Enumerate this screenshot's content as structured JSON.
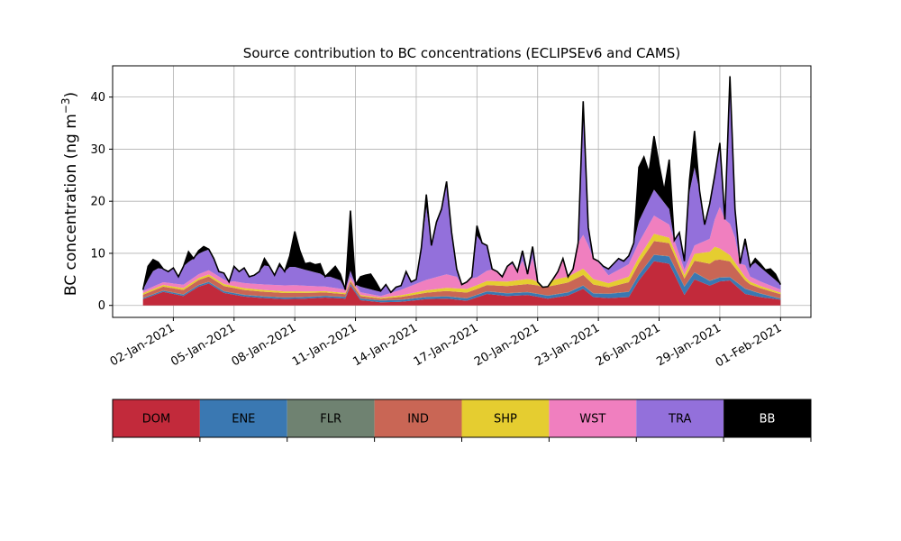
{
  "chart_data": {
    "type": "area",
    "stacked": true,
    "title": "Source contribution to BC concentrations (ECLIPSEv6 and CAMS)",
    "xlabel": "",
    "ylabel": "BC concentration (ng m⁻³)",
    "ylabel_base": "BC concentration (ng m",
    "ylabel_sup": "−3",
    "ylabel_close": ")",
    "x_start": "2020-12-31T12:00",
    "x_end": "2021-02-01T00:00",
    "xlim": [
      "2020-12-30T00:00",
      "2021-02-02T12:00"
    ],
    "ylim": [
      -2.3,
      46
    ],
    "grid": true,
    "x_ticks": [
      {
        "date": "2021-01-02",
        "label": "02-Jan-2021"
      },
      {
        "date": "2021-01-05",
        "label": "05-Jan-2021"
      },
      {
        "date": "2021-01-08",
        "label": "08-Jan-2021"
      },
      {
        "date": "2021-01-11",
        "label": "11-Jan-2021"
      },
      {
        "date": "2021-01-14",
        "label": "14-Jan-2021"
      },
      {
        "date": "2021-01-17",
        "label": "17-Jan-2021"
      },
      {
        "date": "2021-01-20",
        "label": "20-Jan-2021"
      },
      {
        "date": "2021-01-23",
        "label": "23-Jan-2021"
      },
      {
        "date": "2021-01-26",
        "label": "26-Jan-2021"
      },
      {
        "date": "2021-01-29",
        "label": "29-Jan-2021"
      },
      {
        "date": "2021-02-01",
        "label": "01-Feb-2021"
      }
    ],
    "y_ticks": [
      0,
      10,
      20,
      30,
      40
    ],
    "total_points": [
      [
        "2020-12-31T12:00",
        3.0
      ],
      [
        "2020-12-31T18:00",
        7.5
      ],
      [
        "2021-01-01T00:00",
        8.8
      ],
      [
        "2021-01-01T06:00",
        8.3
      ],
      [
        "2021-01-01T12:00",
        7.0
      ],
      [
        "2021-01-01T18:00",
        6.5
      ],
      [
        "2021-01-02T00:00",
        7.2
      ],
      [
        "2021-01-02T06:00",
        5.5
      ],
      [
        "2021-01-02T12:00",
        7.5
      ],
      [
        "2021-01-02T18:00",
        10.3
      ],
      [
        "2021-01-03T00:00",
        9.0
      ],
      [
        "2021-01-03T06:00",
        10.5
      ],
      [
        "2021-01-03T12:00",
        11.3
      ],
      [
        "2021-01-03T18:00",
        10.8
      ],
      [
        "2021-01-04T00:00",
        9.0
      ],
      [
        "2021-01-04T06:00",
        6.5
      ],
      [
        "2021-01-04T12:00",
        6.2
      ],
      [
        "2021-01-04T18:00",
        4.5
      ],
      [
        "2021-01-05T00:00",
        7.5
      ],
      [
        "2021-01-05T06:00",
        6.5
      ],
      [
        "2021-01-05T12:00",
        7.2
      ],
      [
        "2021-01-05T18:00",
        5.5
      ],
      [
        "2021-01-06T00:00",
        5.8
      ],
      [
        "2021-01-06T06:00",
        6.5
      ],
      [
        "2021-01-06T12:00",
        9.0
      ],
      [
        "2021-01-06T18:00",
        7.5
      ],
      [
        "2021-01-07T00:00",
        5.8
      ],
      [
        "2021-01-07T06:00",
        8.0
      ],
      [
        "2021-01-07T12:00",
        6.5
      ],
      [
        "2021-01-07T18:00",
        9.5
      ],
      [
        "2021-01-08T00:00",
        14.2
      ],
      [
        "2021-01-08T06:00",
        10.5
      ],
      [
        "2021-01-08T12:00",
        8.0
      ],
      [
        "2021-01-08T18:00",
        8.2
      ],
      [
        "2021-01-09T00:00",
        7.8
      ],
      [
        "2021-01-09T06:00",
        8.0
      ],
      [
        "2021-01-09T12:00",
        5.5
      ],
      [
        "2021-01-09T18:00",
        6.5
      ],
      [
        "2021-01-10T00:00",
        7.5
      ],
      [
        "2021-01-10T06:00",
        6.0
      ],
      [
        "2021-01-10T12:00",
        3.0
      ],
      [
        "2021-01-10T18:00",
        18.2
      ],
      [
        "2021-01-11T00:00",
        4.0
      ],
      [
        "2021-01-11T06:00",
        5.5
      ],
      [
        "2021-01-11T12:00",
        5.8
      ],
      [
        "2021-01-11T18:00",
        6.0
      ],
      [
        "2021-01-12T00:00",
        4.5
      ],
      [
        "2021-01-12T06:00",
        2.8
      ],
      [
        "2021-01-12T12:00",
        4.0
      ],
      [
        "2021-01-12T18:00",
        2.5
      ],
      [
        "2021-01-13T00:00",
        3.5
      ],
      [
        "2021-01-13T06:00",
        3.8
      ],
      [
        "2021-01-13T12:00",
        6.5
      ],
      [
        "2021-01-13T18:00",
        4.5
      ],
      [
        "2021-01-14T00:00",
        5.0
      ],
      [
        "2021-01-14T06:00",
        11.0
      ],
      [
        "2021-01-14T12:00",
        21.3
      ],
      [
        "2021-01-14T18:00",
        11.5
      ],
      [
        "2021-01-15T00:00",
        16.0
      ],
      [
        "2021-01-15T06:00",
        18.5
      ],
      [
        "2021-01-15T12:00",
        23.8
      ],
      [
        "2021-01-15T18:00",
        14.0
      ],
      [
        "2021-01-16T00:00",
        7.0
      ],
      [
        "2021-01-16T06:00",
        4.0
      ],
      [
        "2021-01-16T12:00",
        4.5
      ],
      [
        "2021-01-16T18:00",
        5.5
      ],
      [
        "2021-01-17T00:00",
        15.3
      ],
      [
        "2021-01-17T06:00",
        12.0
      ],
      [
        "2021-01-17T12:00",
        11.5
      ],
      [
        "2021-01-17T18:00",
        7.0
      ],
      [
        "2021-01-18T00:00",
        6.5
      ],
      [
        "2021-01-18T06:00",
        5.5
      ],
      [
        "2021-01-18T12:00",
        7.5
      ],
      [
        "2021-01-18T18:00",
        8.3
      ],
      [
        "2021-01-19T00:00",
        6.5
      ],
      [
        "2021-01-19T06:00",
        10.5
      ],
      [
        "2021-01-19T12:00",
        6.0
      ],
      [
        "2021-01-19T18:00",
        11.3
      ],
      [
        "2021-01-20T00:00",
        4.5
      ],
      [
        "2021-01-20T06:00",
        3.5
      ],
      [
        "2021-01-20T12:00",
        3.6
      ],
      [
        "2021-01-20T18:00",
        5.0
      ],
      [
        "2021-01-21T00:00",
        6.5
      ],
      [
        "2021-01-21T06:00",
        9.0
      ],
      [
        "2021-01-21T12:00",
        5.5
      ],
      [
        "2021-01-21T18:00",
        7.0
      ],
      [
        "2021-01-22T00:00",
        12.0
      ],
      [
        "2021-01-22T06:00",
        39.2
      ],
      [
        "2021-01-22T12:00",
        15.0
      ],
      [
        "2021-01-22T18:00",
        9.0
      ],
      [
        "2021-01-23T00:00",
        8.5
      ],
      [
        "2021-01-23T06:00",
        7.5
      ],
      [
        "2021-01-23T12:00",
        7.0
      ],
      [
        "2021-01-23T18:00",
        8.0
      ],
      [
        "2021-01-24T00:00",
        9.0
      ],
      [
        "2021-01-24T06:00",
        8.5
      ],
      [
        "2021-01-24T12:00",
        9.5
      ],
      [
        "2021-01-24T18:00",
        12.0
      ],
      [
        "2021-01-25T00:00",
        26.5
      ],
      [
        "2021-01-25T06:00",
        28.5
      ],
      [
        "2021-01-25T12:00",
        25.5
      ],
      [
        "2021-01-25T18:00",
        32.5
      ],
      [
        "2021-01-26T00:00",
        27.0
      ],
      [
        "2021-01-26T06:00",
        22.0
      ],
      [
        "2021-01-26T12:00",
        28.0
      ],
      [
        "2021-01-26T18:00",
        12.5
      ],
      [
        "2021-01-27T00:00",
        14.0
      ],
      [
        "2021-01-27T06:00",
        8.5
      ],
      [
        "2021-01-27T12:00",
        24.0
      ],
      [
        "2021-01-27T18:00",
        33.5
      ],
      [
        "2021-01-28T00:00",
        22.0
      ],
      [
        "2021-01-28T06:00",
        15.5
      ],
      [
        "2021-01-28T12:00",
        19.5
      ],
      [
        "2021-01-28T18:00",
        25.0
      ],
      [
        "2021-01-29T00:00",
        31.2
      ],
      [
        "2021-01-29T06:00",
        16.5
      ],
      [
        "2021-01-29T12:00",
        44.0
      ],
      [
        "2021-01-29T18:00",
        18.5
      ],
      [
        "2021-01-30T00:00",
        8.0
      ],
      [
        "2021-01-30T06:00",
        12.8
      ],
      [
        "2021-01-30T12:00",
        7.5
      ],
      [
        "2021-01-30T18:00",
        9.0
      ],
      [
        "2021-01-31T00:00",
        8.0
      ],
      [
        "2021-01-31T06:00",
        6.8
      ],
      [
        "2021-01-31T12:00",
        7.0
      ],
      [
        "2021-01-31T18:00",
        6.0
      ],
      [
        "2021-02-01T00:00",
        4.0
      ]
    ],
    "series": [
      {
        "name": "DOM",
        "color": "#c22a3b",
        "points": [
          [
            "2020-12-31T12:00",
            1.2
          ],
          [
            "2021-01-01T12:00",
            2.6
          ],
          [
            "2021-01-02T12:00",
            1.8
          ],
          [
            "2021-01-03T06:00",
            3.6
          ],
          [
            "2021-01-03T18:00",
            4.2
          ],
          [
            "2021-01-04T12:00",
            2.4
          ],
          [
            "2021-01-05T12:00",
            1.7
          ],
          [
            "2021-01-06T12:00",
            1.4
          ],
          [
            "2021-01-07T12:00",
            1.2
          ],
          [
            "2021-01-08T12:00",
            1.3
          ],
          [
            "2021-01-09T12:00",
            1.5
          ],
          [
            "2021-01-10T12:00",
            1.3
          ],
          [
            "2021-01-10T18:00",
            3.8
          ],
          [
            "2021-01-11T06:00",
            1.0
          ],
          [
            "2021-01-12T06:00",
            0.6
          ],
          [
            "2021-01-13T06:00",
            0.7
          ],
          [
            "2021-01-14T12:00",
            1.2
          ],
          [
            "2021-01-15T12:00",
            1.3
          ],
          [
            "2021-01-16T12:00",
            0.9
          ],
          [
            "2021-01-17T12:00",
            2.2
          ],
          [
            "2021-01-18T12:00",
            1.8
          ],
          [
            "2021-01-19T12:00",
            2.0
          ],
          [
            "2021-01-20T12:00",
            1.3
          ],
          [
            "2021-01-21T12:00",
            1.9
          ],
          [
            "2021-01-22T06:00",
            3.2
          ],
          [
            "2021-01-22T18:00",
            1.6
          ],
          [
            "2021-01-23T12:00",
            1.4
          ],
          [
            "2021-01-24T12:00",
            1.6
          ],
          [
            "2021-01-25T00:00",
            4.8
          ],
          [
            "2021-01-25T18:00",
            8.5
          ],
          [
            "2021-01-26T12:00",
            8.0
          ],
          [
            "2021-01-27T06:00",
            2.0
          ],
          [
            "2021-01-27T18:00",
            5.0
          ],
          [
            "2021-01-28T12:00",
            3.8
          ],
          [
            "2021-01-29T00:00",
            4.6
          ],
          [
            "2021-01-29T12:00",
            4.8
          ],
          [
            "2021-01-30T06:00",
            2.2
          ],
          [
            "2021-01-31T00:00",
            1.6
          ],
          [
            "2021-02-01T00:00",
            1.1
          ]
        ]
      },
      {
        "name": "ENE",
        "color": "#3a78b2",
        "points": [
          [
            "2020-12-31T12:00",
            0.2
          ],
          [
            "2021-01-03T18:00",
            0.3
          ],
          [
            "2021-01-10T18:00",
            0.3
          ],
          [
            "2021-01-22T06:00",
            0.6
          ],
          [
            "2021-01-25T18:00",
            1.2
          ],
          [
            "2021-01-27T06:00",
            1.6
          ],
          [
            "2021-01-28T12:00",
            0.9
          ],
          [
            "2021-01-29T12:00",
            0.6
          ],
          [
            "2021-01-30T06:00",
            1.0
          ],
          [
            "2021-02-01T00:00",
            0.2
          ]
        ]
      },
      {
        "name": "FLR",
        "color": "#6f8271",
        "points": [
          [
            "2020-12-31T12:00",
            0.05
          ],
          [
            "2021-02-01T00:00",
            0.05
          ]
        ]
      },
      {
        "name": "IND",
        "color": "#c96655",
        "points": [
          [
            "2020-12-31T12:00",
            0.6
          ],
          [
            "2021-01-03T18:00",
            1.0
          ],
          [
            "2021-01-08T00:00",
            0.8
          ],
          [
            "2021-01-12T06:00",
            0.3
          ],
          [
            "2021-01-15T12:00",
            1.0
          ],
          [
            "2021-01-17T00:00",
            1.1
          ],
          [
            "2021-01-22T06:00",
            2.0
          ],
          [
            "2021-01-23T12:00",
            1.2
          ],
          [
            "2021-01-25T18:00",
            2.6
          ],
          [
            "2021-01-26T12:00",
            2.5
          ],
          [
            "2021-01-27T06:00",
            1.5
          ],
          [
            "2021-01-28T18:00",
            3.6
          ],
          [
            "2021-01-29T12:00",
            3.0
          ],
          [
            "2021-01-30T12:00",
            1.1
          ],
          [
            "2021-02-01T00:00",
            0.8
          ]
        ]
      },
      {
        "name": "SHP",
        "color": "#e5cd30",
        "points": [
          [
            "2020-12-31T12:00",
            0.3
          ],
          [
            "2021-01-03T18:00",
            0.4
          ],
          [
            "2021-01-12T06:00",
            0.2
          ],
          [
            "2021-01-15T12:00",
            0.6
          ],
          [
            "2021-01-22T06:00",
            1.2
          ],
          [
            "2021-01-23T12:00",
            0.8
          ],
          [
            "2021-01-25T18:00",
            1.4
          ],
          [
            "2021-01-27T06:00",
            0.7
          ],
          [
            "2021-01-28T18:00",
            2.6
          ],
          [
            "2021-01-29T12:00",
            1.2
          ],
          [
            "2021-01-30T12:00",
            0.5
          ],
          [
            "2021-02-01T00:00",
            0.3
          ]
        ]
      },
      {
        "name": "WST",
        "color": "#f07fbf",
        "points": [
          [
            "2020-12-31T12:00",
            0.4
          ],
          [
            "2021-01-03T18:00",
            0.8
          ],
          [
            "2021-01-08T00:00",
            1.2
          ],
          [
            "2021-01-12T06:00",
            0.3
          ],
          [
            "2021-01-14T12:00",
            2.0
          ],
          [
            "2021-01-15T12:00",
            2.6
          ],
          [
            "2021-01-17T00:00",
            1.5
          ],
          [
            "2021-01-22T06:00",
            6.5
          ],
          [
            "2021-01-23T12:00",
            1.5
          ],
          [
            "2021-01-25T18:00",
            3.5
          ],
          [
            "2021-01-26T12:00",
            2.5
          ],
          [
            "2021-01-27T06:00",
            1.0
          ],
          [
            "2021-01-28T12:00",
            2.5
          ],
          [
            "2021-01-29T00:00",
            8.0
          ],
          [
            "2021-01-29T12:00",
            6.0
          ],
          [
            "2021-01-30T12:00",
            1.0
          ],
          [
            "2021-02-01T00:00",
            0.6
          ]
        ]
      },
      {
        "name": "TRA",
        "color": "#9370db",
        "points": [
          [
            "2020-12-31T12:00",
            0.5
          ],
          [
            "2021-01-01T00:00",
            3.0
          ],
          [
            "2021-01-03T12:00",
            4.0
          ],
          [
            "2021-01-08T00:00",
            3.5
          ],
          [
            "2021-01-10T18:00",
            1.2
          ],
          [
            "2021-01-12T06:00",
            0.8
          ],
          [
            "2021-01-14T12:00",
            14.0
          ],
          [
            "2021-01-15T12:00",
            18.0
          ],
          [
            "2021-01-16T12:00",
            2.0
          ],
          [
            "2021-01-17T00:00",
            8.0
          ],
          [
            "2021-01-19T18:00",
            4.0
          ],
          [
            "2021-01-22T06:00",
            25.0
          ],
          [
            "2021-01-22T18:00",
            4.0
          ],
          [
            "2021-01-24T12:00",
            3.5
          ],
          [
            "2021-01-25T18:00",
            5.0
          ],
          [
            "2021-01-26T12:00",
            3.0
          ],
          [
            "2021-01-27T18:00",
            15.0
          ],
          [
            "2021-01-28T12:00",
            8.0
          ],
          [
            "2021-01-29T00:00",
            12.0
          ],
          [
            "2021-01-29T12:00",
            28.0
          ],
          [
            "2021-01-30T06:00",
            4.0
          ],
          [
            "2021-02-01T00:00",
            1.0
          ]
        ]
      }
    ],
    "legend": {
      "placement": "bottom",
      "style": "colorbar",
      "entries": [
        {
          "name": "DOM",
          "color": "#c22a3b"
        },
        {
          "name": "ENE",
          "color": "#3a78b2"
        },
        {
          "name": "FLR",
          "color": "#6f8271"
        },
        {
          "name": "IND",
          "color": "#c96655"
        },
        {
          "name": "SHP",
          "color": "#e5cd30"
        },
        {
          "name": "WST",
          "color": "#f07fbf"
        },
        {
          "name": "TRA",
          "color": "#9370db"
        },
        {
          "name": "BB",
          "color": "#000000",
          "text_color": "#ffffff"
        }
      ]
    }
  }
}
